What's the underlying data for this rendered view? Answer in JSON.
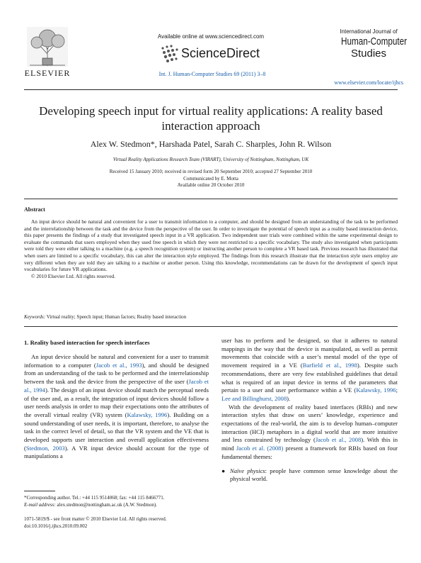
{
  "header": {
    "publisher": "ELSEVIER",
    "available_online": "Available online at www.sciencedirect.com",
    "sciencedirect": "ScienceDirect",
    "citation": "Int. J. Human-Computer Studies 69 (2011) 3–8",
    "journal_small": "International Journal of",
    "journal_big_1": "Human-Computer",
    "journal_big_2": "Studies",
    "url": "www.elsevier.com/locate/ijhcs"
  },
  "title": "Developing speech input for virtual reality applications: A reality based interaction approach",
  "authors": "Alex W. Stedmon*, Harshada Patel, Sarah C. Sharples, John R. Wilson",
  "affiliation": "Virtual Reality Applications Research Team (VIRART), University of Nottingham, Nottingham, UK",
  "dates": {
    "received": "Received 15 January 2010; received in revised form 20 September 2010; accepted 27 September 2010",
    "communicated": "Communicated by E. Motta",
    "online": "Available online 20 October 2010"
  },
  "abstract": {
    "heading": "Abstract",
    "body": "An input device should be natural and convenient for a user to transmit information to a computer, and should be designed from an understanding of the task to be performed and the interrelationship between the task and the device from the perspective of the user. In order to investigate the potential of speech input as a reality based interaction device, this paper presents the findings of a study that investigated speech input in a VR application. Two independent user trials were combined within the same experimental design to evaluate the commands that users employed when they used free speech in which they were not restricted to a specific vocabulary. The study also investigated when participants were told they were either talking to a machine (e.g. a speech recognition system) or instructing another person to complete a VR based task. Previous research has illustrated that when users are limited to a specific vocabulary, this can alter the interaction style employed. The findings from this research illustrate that the interaction style users employ are very different when they are told they are talking to a machine or another person. Using this knowledge, recommendations can be drawn for the development of speech input vocabularies for future VR applications.",
    "copyright": "© 2010 Elsevier Ltd. All rights reserved."
  },
  "keywords": {
    "label": "Keywords:",
    "text": " Virtual reality; Speech input; Human factors; Reality based interaction"
  },
  "section1": {
    "heading": "1.  Reality based interaction for speech interfaces",
    "left_p1_a": "An input device should be natural and convenient for a user to transmit information to a computer (",
    "ref_jacob1993": "Jacob et al., 1993",
    "left_p1_b": "), and should be designed from an understanding of the task to be performed and the interrelationship between the task and the device from the perspective of the user (",
    "ref_jacob1994": "Jacob et al., 1994",
    "left_p1_c": "). The design of an input device should match the perceptual needs of the user and, as a result, the integration of input devices should follow a user needs analysis in order to map their expectations onto the attributes of the overall virtual reality (VR) system (",
    "ref_kalawsky1996": "Kalawsky, 1996",
    "left_p1_d": "). Building on a sound understanding of user needs, it is important, therefore, to analyse the task in the correct level of detail, so that the VR system and the VE that is developed supports user interaction and overall application effectiveness (",
    "ref_stedmon2003": "Stedmon, 2003",
    "left_p1_e": "). A VR input device should account for the type of manipulations a",
    "right_p1_a": "user has to perform and be designed, so that it adheres to natural mappings in the way that the device is manipulated, as well as permit movements that coincide with a user’s mental model of the type of movement required in a VE (",
    "ref_barfield1998": "Barfield et al., 1998",
    "right_p1_b": "). Despite such recommendations, there are very few established guidelines that detail what is required of an input device in terms of the parameters that pertain to a user and user performance within a VE (",
    "ref_kalawsky1996b": "Kalawsky, 1996",
    "right_p1_sep": "; ",
    "ref_lee2008": "Lee and Billinghurst, 2008",
    "right_p1_c": ").",
    "right_p2_a": "With the development of reality based interfaces (RBIs) and new interaction styles that draw on users’ knowledge, experience and expectations of the real-world, the aim is to develop human–computer interaction (HCI) metaphors in a digital world that are more intuitive and less constrained by technology (",
    "ref_jacob2008": "Jacob et al., 2008",
    "right_p2_b": "). With this in mind ",
    "ref_jacob2008b": "Jacob et al. (2008)",
    "right_p2_c": " present a framework for RBIs based on four fundamental themes:",
    "bullet_symbol": "●",
    "bullet1_term": "Naïve physics",
    "bullet1_text": ": people have common sense knowledge about the physical world."
  },
  "footnote": {
    "line1": "*Corresponding author. Tel.: +44 115 9514068; fax: +44 115 8466771.",
    "email_label": "E-mail address:",
    "email": " alex.stedmon@nottingham.ac.uk (A.W. Stedmon)."
  },
  "footer": {
    "issn": "1071-5819/$ - see front matter © 2010 Elsevier Ltd. All rights reserved.",
    "doi": "doi:10.1016/j.ijhcs.2010.09.002"
  }
}
